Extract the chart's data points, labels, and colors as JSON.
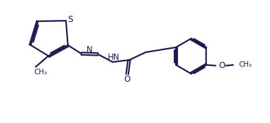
{
  "bg_color": "#ffffff",
  "line_color": "#1a1a4e",
  "line_width": 1.6,
  "font_size": 8.5,
  "xlim": [
    0,
    10
  ],
  "ylim": [
    0,
    5
  ]
}
